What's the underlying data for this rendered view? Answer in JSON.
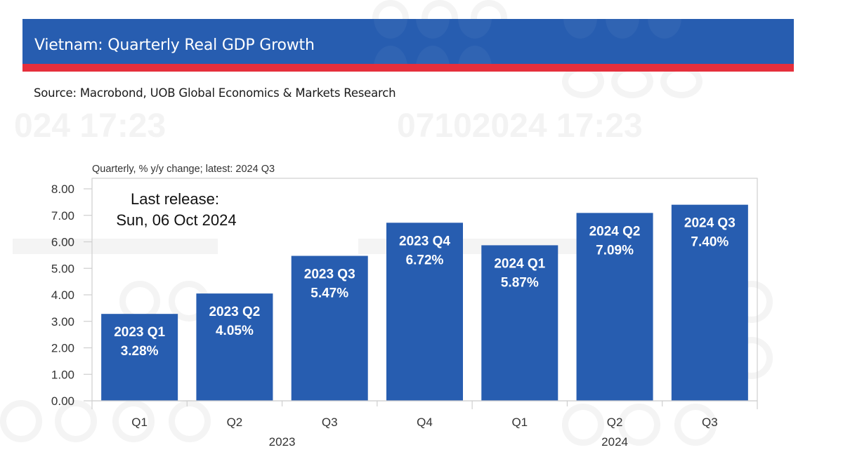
{
  "header": {
    "title": "Vietnam: Quarterly Real GDP Growth",
    "source": "Source: Macrobond, UOB Global Economics & Markets Research",
    "brand_blue": "#275db0",
    "brand_red": "#e52f3c"
  },
  "watermark": {
    "text_left": "024 17:23",
    "text_right": "07102024 17:23"
  },
  "chart_data": {
    "type": "bar",
    "title": "Vietnam: Quarterly Real GDP Growth",
    "subtitle": "Quarterly, % y/y change; latest: 2024 Q3",
    "xlabel": "",
    "ylabel": "",
    "categories": [
      "Q1",
      "Q2",
      "Q3",
      "Q4",
      "Q1",
      "Q2",
      "Q3"
    ],
    "category_groups": [
      {
        "label": "2023",
        "span": [
          0,
          3
        ]
      },
      {
        "label": "2024",
        "span": [
          4,
          6
        ]
      }
    ],
    "values": [
      3.28,
      4.05,
      5.47,
      6.72,
      5.87,
      7.09,
      7.4
    ],
    "data_labels": [
      [
        "2023 Q1",
        "3.28%"
      ],
      [
        "2023 Q2",
        "4.05%"
      ],
      [
        "2023 Q3",
        "5.47%"
      ],
      [
        "2023 Q4",
        "6.72%"
      ],
      [
        "2024 Q1",
        "5.87%"
      ],
      [
        "2024 Q2",
        "7.09%"
      ],
      [
        "2024 Q3",
        "7.40%"
      ]
    ],
    "ylim": [
      0,
      8
    ],
    "yticks": [
      "0.00",
      "1.00",
      "2.00",
      "3.00",
      "4.00",
      "5.00",
      "6.00",
      "7.00",
      "8.00"
    ],
    "bar_color": "#275db0",
    "grid": false,
    "legend": "none",
    "annotation": [
      "Last release:",
      "Sun, 06 Oct 2024"
    ]
  }
}
